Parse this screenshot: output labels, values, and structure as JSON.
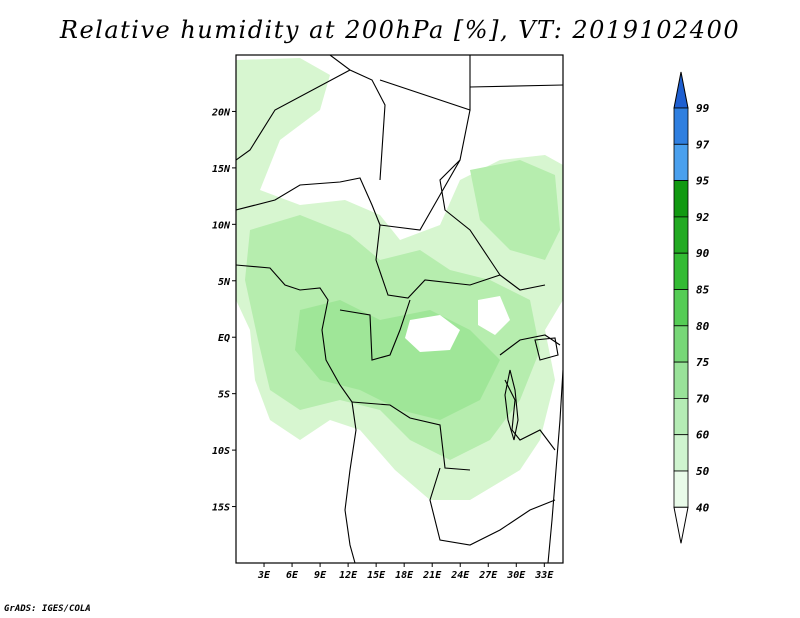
{
  "title": "Relative humidity at 200hPa [%], VT: 2019102400",
  "credit": "GrADS: IGES/COLA",
  "map": {
    "lat_labels": [
      "20N",
      "15N",
      "10N",
      "5N",
      "EQ",
      "5S",
      "10S",
      "15S"
    ],
    "lat_values": [
      20,
      15,
      10,
      5,
      0,
      -5,
      -10,
      -15
    ],
    "lon_labels": [
      "3E",
      "6E",
      "9E",
      "12E",
      "15E",
      "18E",
      "21E",
      "24E",
      "27E",
      "30E",
      "33E"
    ],
    "lon_values": [
      3,
      6,
      9,
      12,
      15,
      18,
      21,
      24,
      27,
      30,
      33
    ],
    "lon_range": [
      0,
      35
    ],
    "lat_range": [
      -20,
      25
    ]
  },
  "colorbar": {
    "levels": [
      "99",
      "97",
      "95",
      "92",
      "90",
      "85",
      "80",
      "75",
      "70",
      "60",
      "50",
      "40"
    ],
    "colors": [
      "#1e5fd0",
      "#2f7fe0",
      "#4aa0ee",
      "#119911",
      "#22aa22",
      "#33bb33",
      "#55cc55",
      "#77d777",
      "#99e299",
      "#b5ecb5",
      "#cff4cf",
      "#e9fbe9",
      "#ffffff"
    ]
  },
  "colors": {
    "frame": "#000000",
    "humid_light": "#d7f6d0",
    "humid_mid": "#b6edae",
    "humid_strong": "#9be494"
  }
}
